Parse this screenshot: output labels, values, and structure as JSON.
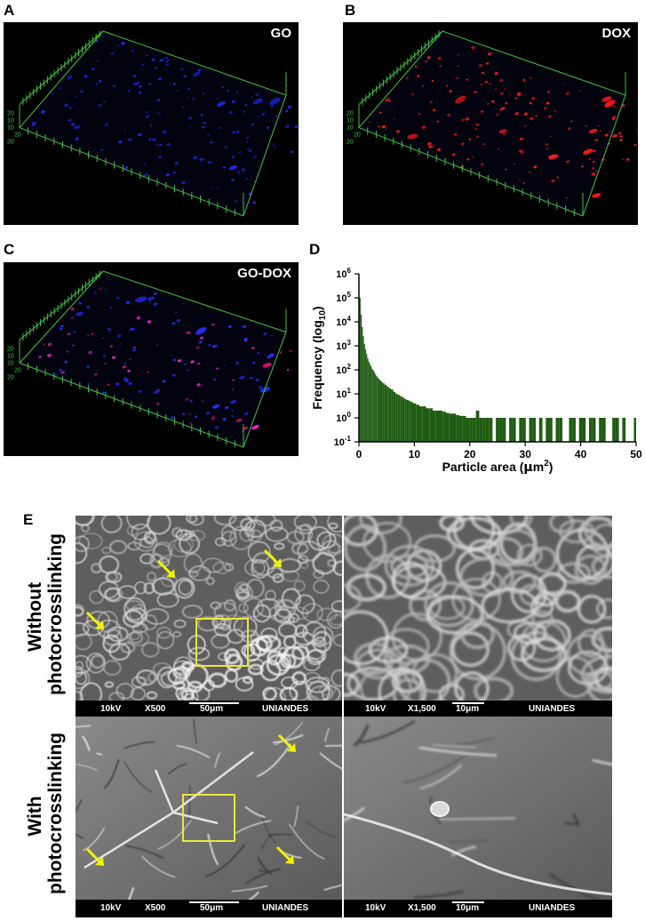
{
  "panels": {
    "A": {
      "letter": "A",
      "label": "GO",
      "particle_color": "#1a2cff"
    },
    "B": {
      "letter": "B",
      "label": "DOX",
      "particle_color": "#ff1a1a"
    },
    "C": {
      "letter": "C",
      "label": "GO-DOX",
      "particle_color": "#ff2bd6"
    },
    "D": {
      "letter": "D"
    },
    "E": {
      "letter": "E"
    }
  },
  "stack_axis_ticks": [
    "20",
    "10",
    "10",
    "20",
    "20"
  ],
  "rows": {
    "without": {
      "line1": "Without",
      "line2": "photocrosslinking"
    },
    "with": {
      "line1": "With",
      "line2": "photocrosslinking"
    }
  },
  "sem_bars": {
    "low": {
      "kv": "10kV",
      "mag": "X500",
      "scale": "50μm",
      "lab": "UNIANDES"
    },
    "high": {
      "kv": "10kV",
      "mag": "X1,500",
      "scale": "10μm",
      "lab": "UNIANDES"
    }
  },
  "colors": {
    "grid_green": "#3ec63e",
    "bar_green": "#1f5c12",
    "arrow_yellow": "#f2f200",
    "box_yellow": "#e8e83a"
  },
  "chart_data": {
    "type": "bar",
    "xlabel": "Particle area (μm²)",
    "ylabel": "Frequency (log₁₀)",
    "ylabel_parts": {
      "main": "Frequency (log",
      "sub": "10",
      "end": ")"
    },
    "xlabel_parts": {
      "main": "Particle area (",
      "mu": "μ",
      "m": "m",
      "sup": "2",
      "end": ")"
    },
    "x_ticks": [
      "0",
      "10",
      "20",
      "30",
      "40",
      "50"
    ],
    "xlim": [
      0,
      50
    ],
    "y_log": true,
    "y_tick_exponents": [
      "6",
      "5",
      "4",
      "3",
      "2",
      "1",
      "0",
      "-1"
    ],
    "ylim_log10": [
      -1,
      6
    ],
    "bin_width": 0.2,
    "x": [
      0.2,
      0.4,
      0.6,
      0.8,
      1.0,
      1.2,
      1.4,
      1.6,
      1.8,
      2.0,
      2.2,
      2.4,
      2.6,
      2.8,
      3.0,
      3.2,
      3.4,
      3.6,
      3.8,
      4.0,
      4.4,
      4.8,
      5.2,
      5.6,
      6.0,
      6.4,
      6.8,
      7.2,
      7.6,
      8.0,
      8.4,
      8.8,
      9.2,
      9.6,
      10.0,
      10.6,
      11.2,
      11.8,
      12.4,
      13.0,
      13.6,
      14.2,
      14.8,
      15.4,
      16.0,
      16.6,
      17.2,
      17.8,
      18.4,
      19.0,
      19.6,
      20.2,
      20.8,
      21.4,
      22.0,
      22.6,
      23.2,
      23.8,
      24.4,
      25.0,
      25.6,
      26.2,
      26.8,
      27.4,
      28.0,
      28.6,
      29.2,
      29.8,
      30.4,
      31.0,
      31.6,
      32.2,
      32.8,
      33.4,
      34.0,
      34.6,
      35.2,
      35.8,
      36.4,
      37.0,
      37.6,
      38.2,
      38.8,
      39.4,
      40.0,
      40.6,
      41.2,
      41.8,
      42.4,
      43.0,
      43.6,
      44.2,
      44.8,
      45.4,
      46.0,
      46.6,
      47.2,
      47.8,
      48.4,
      49.0,
      49.8
    ],
    "values": [
      100000,
      20000,
      6000,
      2500,
      1200,
      700,
      450,
      300,
      220,
      170,
      140,
      110,
      95,
      80,
      65,
      55,
      48,
      42,
      38,
      33,
      28,
      24,
      20,
      17,
      15,
      12,
      10,
      9,
      8,
      7,
      6,
      5.5,
      5,
      4.5,
      4,
      3.5,
      3,
      3,
      2.5,
      2.5,
      2,
      2,
      2,
      1.8,
      1.6,
      1.5,
      1.5,
      1.3,
      1.2,
      1.2,
      1,
      1,
      1,
      2,
      1,
      1,
      1,
      1,
      0,
      1,
      1,
      1,
      0,
      1,
      1,
      0,
      1,
      1,
      0,
      1,
      1,
      0,
      1,
      0,
      1,
      1,
      0,
      1,
      1,
      0,
      0,
      1,
      1,
      0,
      1,
      1,
      0,
      1,
      1,
      0,
      1,
      1,
      0,
      0,
      1,
      1,
      0,
      1,
      0,
      0,
      1
    ]
  }
}
